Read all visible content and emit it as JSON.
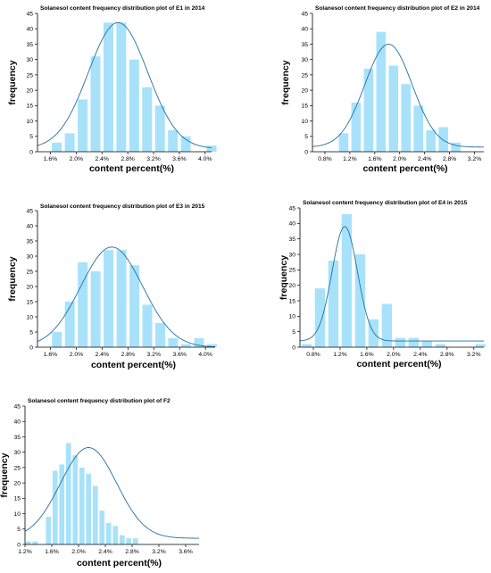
{
  "colors": {
    "bar": "#a8e2fa",
    "curve": "#1f6fa3",
    "axis": "#000000"
  },
  "chart_data": [
    {
      "type": "bar",
      "title": "Solanesol content frequency distribution plot of E1 in 2014",
      "xlabel": "content percent(%)",
      "ylabel": "frequency",
      "ylim": [
        0,
        45
      ],
      "yticks": [
        "0",
        "5",
        "10",
        "15",
        "20",
        "25",
        "30",
        "35",
        "40",
        "45"
      ],
      "xlim": [
        1.4,
        4.1
      ],
      "xticks": [
        "1.6%",
        "2.0%",
        "2.4%",
        "2.8%",
        "3.2%",
        "3.6%",
        "4.0%"
      ],
      "xtick_values": [
        1.6,
        2.0,
        2.4,
        2.8,
        3.2,
        3.6,
        4.0
      ],
      "bin_start": 1.4,
      "bin_width": 0.2,
      "values": [
        0,
        3,
        6,
        17,
        31,
        42,
        42,
        30,
        21,
        15,
        7,
        5,
        0,
        2
      ],
      "fit_curve": {
        "type": "normal fit",
        "mean": 2.65,
        "sd": 0.46,
        "peak": 42,
        "baseline": 1
      }
    },
    {
      "type": "bar",
      "title": "Solanesol content frequency distribution plot of E2 in 2014",
      "xlabel": "content percent(%)",
      "ylabel": "frequency",
      "ylim": [
        0,
        45
      ],
      "yticks": [
        "0",
        "5",
        "10",
        "15",
        "20",
        "25",
        "30",
        "35",
        "40",
        "45"
      ],
      "xlim": [
        0.6,
        3.35
      ],
      "xticks": [
        "0.8%",
        "1.2%",
        "1.6%",
        "2.0%",
        "2.4%",
        "2.8%",
        "3.2%"
      ],
      "xtick_values": [
        0.8,
        1.2,
        1.6,
        2.0,
        2.4,
        2.8,
        3.2
      ],
      "bin_start": 0.6,
      "bin_width": 0.2,
      "values": [
        0,
        0,
        6,
        16,
        27,
        39,
        28,
        22,
        15,
        7,
        8,
        3,
        0,
        0
      ],
      "fit_curve": {
        "type": "normal fit",
        "mean": 1.82,
        "sd": 0.38,
        "peak": 35,
        "baseline": 1.5
      }
    },
    {
      "type": "bar",
      "title": "Solanesol content frequency distribution plot of E3 in 2015",
      "xlabel": "content percent(%)",
      "ylabel": "frequency",
      "ylim": [
        0,
        45
      ],
      "yticks": [
        "0",
        "5",
        "10",
        "15",
        "20",
        "25",
        "30",
        "35",
        "40",
        "45"
      ],
      "xlim": [
        1.4,
        4.15
      ],
      "xticks": [
        "1.6%",
        "2.0%",
        "2.4%",
        "2.8%",
        "3.2%",
        "3.6%",
        "4.0%"
      ],
      "xtick_values": [
        1.6,
        2.0,
        2.4,
        2.8,
        3.2,
        3.6,
        4.0
      ],
      "bin_start": 1.6,
      "bin_width": 0.2,
      "values": [
        5,
        15,
        28,
        25,
        32,
        32,
        27,
        14,
        8,
        3,
        1,
        3,
        1
      ],
      "fit_curve": {
        "type": "normal fit",
        "mean": 2.55,
        "sd": 0.48,
        "peak": 33,
        "baseline": 0
      }
    },
    {
      "type": "bar",
      "title": "Solanesol content frequency distribution plot of E4 in 2015",
      "xlabel": "content percent(%)",
      "ylabel": "frequency",
      "ylim": [
        0,
        45
      ],
      "yticks": [
        "0",
        "5",
        "10",
        "15",
        "20",
        "25",
        "30",
        "35",
        "40",
        "45"
      ],
      "xlim": [
        0.6,
        3.35
      ],
      "xticks": [
        "0.8%",
        "1.2%",
        "1.6%",
        "2.0%",
        "2.4%",
        "2.8%",
        "3.2%"
      ],
      "xtick_values": [
        0.8,
        1.2,
        1.6,
        2.0,
        2.4,
        2.8,
        3.2
      ],
      "bin_start": 0.6,
      "bin_width": 0.2,
      "values": [
        1,
        19,
        28,
        43,
        30,
        9,
        14,
        3,
        3,
        2,
        1,
        0,
        0,
        1
      ],
      "fit_curve": {
        "type": "normal fit",
        "mean": 1.27,
        "sd": 0.19,
        "peak": 39,
        "baseline": 2
      }
    },
    {
      "type": "bar",
      "title": "Solanesol content frequency distribution plot of F2",
      "xlabel": "content percent(%)",
      "ylabel": "frequency",
      "ylim": [
        0,
        45
      ],
      "yticks": [
        "0",
        "5",
        "10",
        "15",
        "20",
        "25",
        "30",
        "35",
        "40",
        "45"
      ],
      "xlim": [
        1.2,
        3.8
      ],
      "xticks": [
        "1.2%",
        "1.6%",
        "2.0%",
        "2.4%",
        "2.8%",
        "3.2%",
        "3.6%"
      ],
      "xtick_values": [
        1.2,
        1.6,
        2.0,
        2.4,
        2.8,
        3.2,
        3.6
      ],
      "bin_start": 1.2,
      "bin_width": 0.1,
      "values": [
        1,
        1,
        0,
        9,
        24,
        26,
        33,
        29,
        25,
        23,
        19,
        11,
        7,
        6,
        3,
        2,
        2
      ],
      "fit_curve": {
        "type": "normal fit",
        "mean": 2.15,
        "sd": 0.42,
        "peak": 31.5,
        "baseline": 2
      }
    }
  ]
}
